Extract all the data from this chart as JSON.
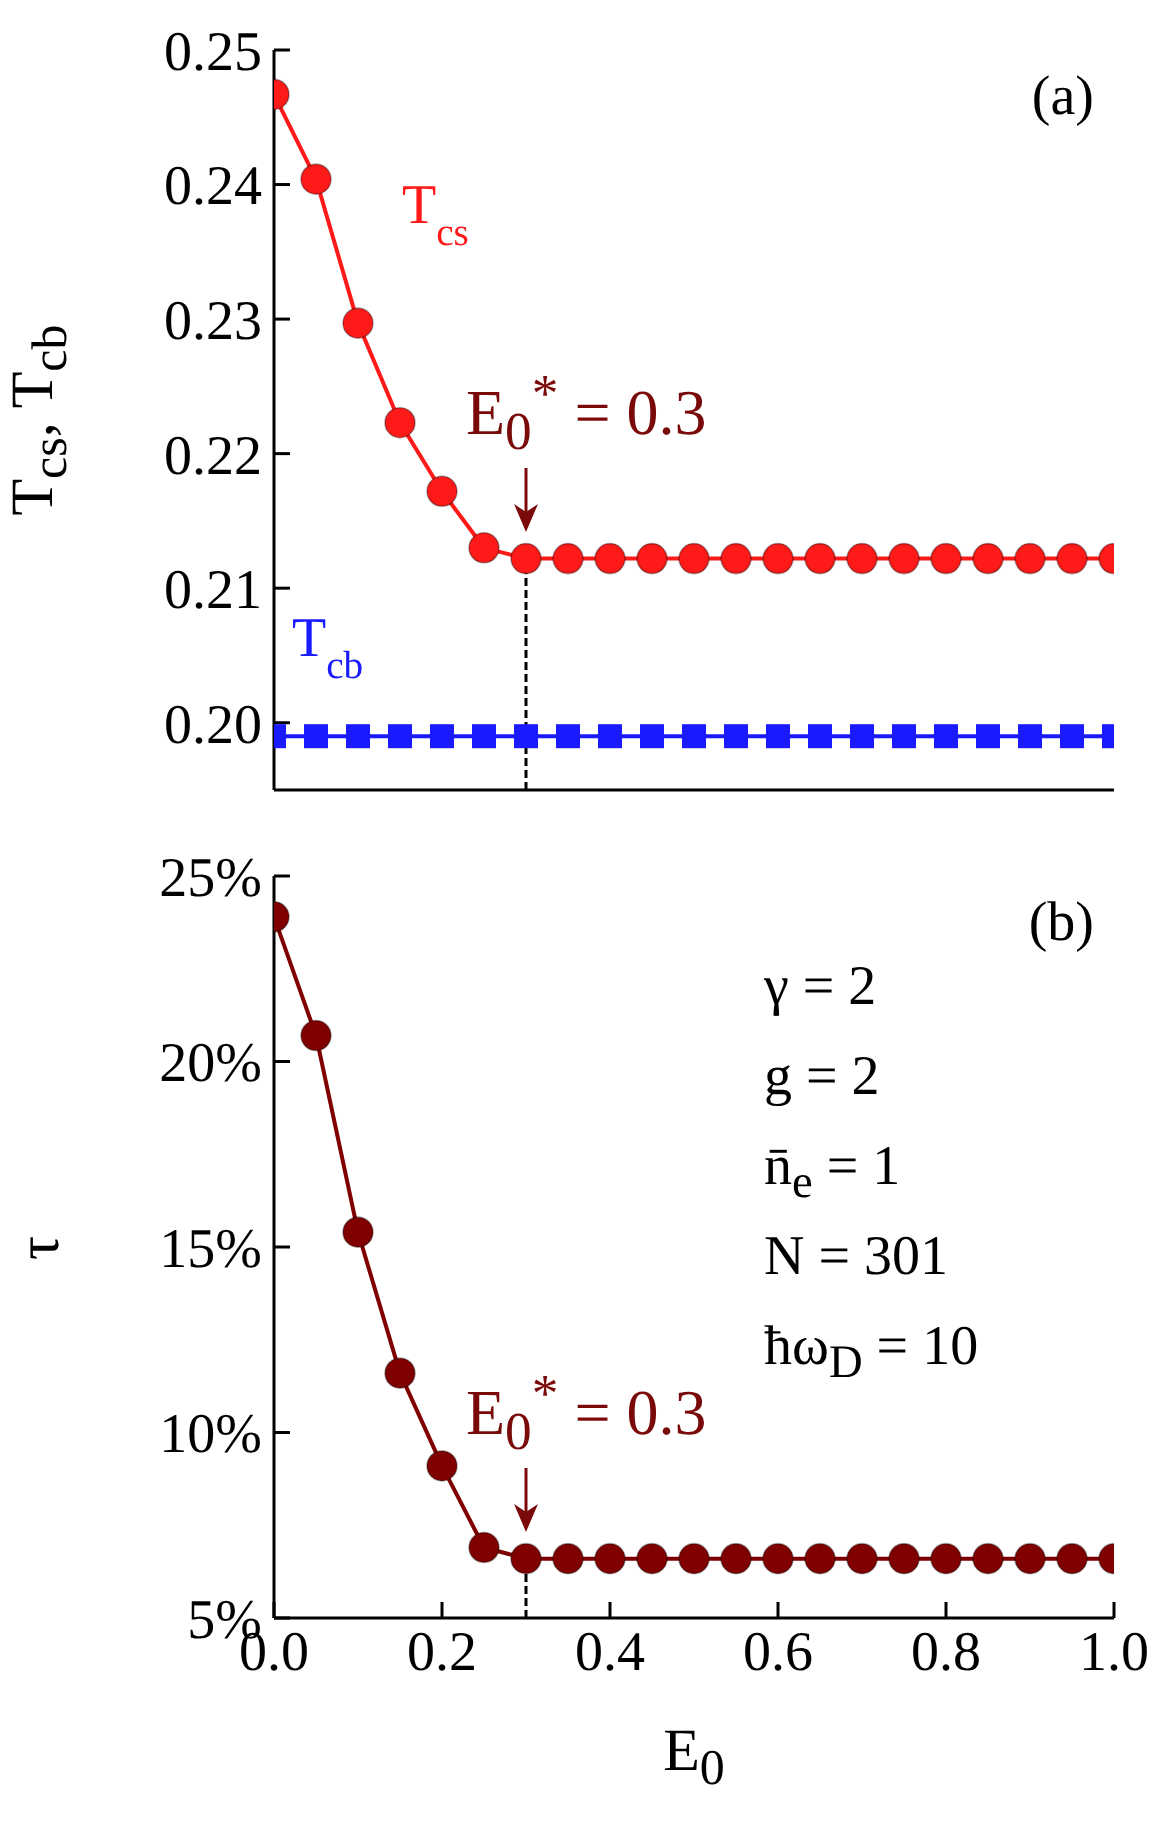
{
  "chart_data": [
    {
      "type": "line",
      "ylabel": "T$_{cs}$, T$_{cb}$",
      "x": [
        0,
        0.05,
        0.1,
        0.15,
        0.2,
        0.25,
        0.3,
        0.35,
        0.4,
        0.45,
        0.5,
        0.55,
        0.6,
        0.65,
        0.7,
        0.75,
        0.8,
        0.85,
        0.9,
        0.95,
        1.0
      ],
      "series": [
        {
          "name": "T$_{cs}$",
          "color": "#ff1a1a",
          "marker": "circle",
          "values": [
            0.2467,
            0.2404,
            0.2297,
            0.2223,
            0.2172,
            0.213,
            0.2122,
            0.2122,
            0.2122,
            0.2122,
            0.2122,
            0.2122,
            0.2122,
            0.2122,
            0.2122,
            0.2122,
            0.2122,
            0.2122,
            0.2122,
            0.2122,
            0.2122
          ]
        },
        {
          "name": "T$_{cb}$",
          "color": "#1a1aff",
          "marker": "square",
          "values": [
            0.199,
            0.199,
            0.199,
            0.199,
            0.199,
            0.199,
            0.199,
            0.199,
            0.199,
            0.199,
            0.199,
            0.199,
            0.199,
            0.199,
            0.199,
            0.199,
            0.199,
            0.199,
            0.199,
            0.199,
            0.199
          ]
        }
      ],
      "xlim": [
        0,
        1.0
      ],
      "xticks": [
        0,
        0.2,
        0.4,
        0.6,
        0.8,
        1.0
      ],
      "ylim": [
        0.195,
        0.25
      ],
      "yticks": [
        {
          "value": 0.2,
          "label": "0.20"
        },
        0.21,
        0.22,
        0.23,
        0.24,
        0.25
      ],
      "tick_labels": "y",
      "grid": false,
      "legend": false,
      "line_style": "solid",
      "ref_lines": [
        {
          "axis": "x",
          "value": 0.3,
          "line_style": "dashed",
          "color": "#000000"
        }
      ],
      "annotations": [
        "(a)",
        {
          "text": "E$_{0}$$^{*}$ = 0.3",
          "x": 0.3,
          "y": 0.2122
        }
      ]
    },
    {
      "type": "line",
      "xlabel": "E$_{0}$",
      "ylabel": "τ",
      "x": [
        0,
        0.05,
        0.1,
        0.15,
        0.2,
        0.25,
        0.3,
        0.35,
        0.4,
        0.45,
        0.5,
        0.55,
        0.6,
        0.65,
        0.7,
        0.75,
        0.8,
        0.85,
        0.9,
        0.95,
        1.0
      ],
      "series": [
        {
          "color": "#800000",
          "marker": "circle",
          "values": [
            23.9,
            20.7,
            15.4,
            11.6,
            9.1,
            6.9,
            6.6,
            6.6,
            6.6,
            6.6,
            6.6,
            6.6,
            6.6,
            6.6,
            6.6,
            6.6,
            6.6,
            6.6,
            6.6,
            6.6,
            6.6
          ]
        },
        {
          "type": "line",
          "color": "#000000",
          "marker": "none",
          "line_style": "dashed",
          "x": [
            0.3,
            0.3
          ],
          "values": [
            5,
            6.6
          ]
        }
      ],
      "xlim": [
        0,
        1.0
      ],
      "xticks": [
        {
          "value": 0,
          "label": "0.0"
        },
        0.2,
        0.4,
        0.6,
        0.8,
        {
          "value": 1.0,
          "label": "1.0"
        }
      ],
      "ylim": [
        5,
        25
      ],
      "yticks": [
        {
          "value": 5,
          "label": "5%"
        },
        {
          "value": 10,
          "label": "10%"
        },
        {
          "value": 15,
          "label": "15%"
        },
        {
          "value": 20,
          "label": "20%"
        },
        {
          "value": 25,
          "label": "25%"
        }
      ],
      "grid": false,
      "legend": false,
      "line_style": "solid",
      "annotations": [
        "(b)",
        {
          "text": "E$_{0}$$^{*}$ = 0.3",
          "x": 0.3,
          "y": 6.6
        },
        "γ = 2",
        "g = 2",
        "n̄$_{e}$ = 1",
        "N = 301",
        "ħω$_{D}$ = 10"
      ]
    }
  ]
}
